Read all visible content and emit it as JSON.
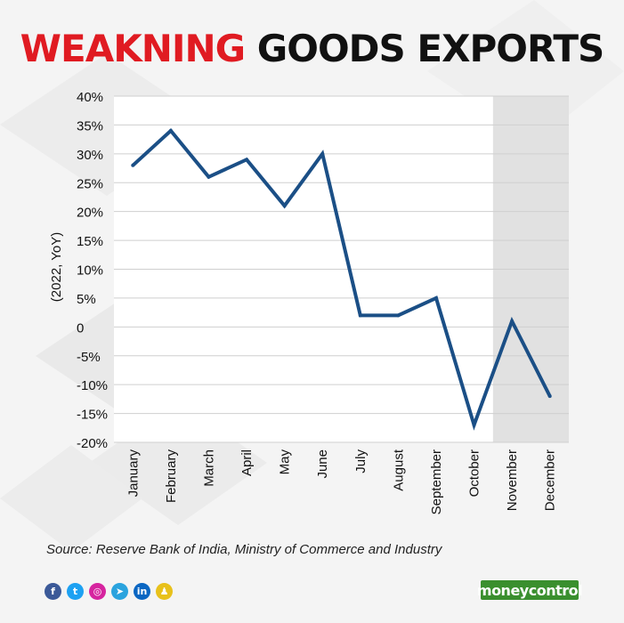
{
  "title": {
    "highlight": "WEAKNING",
    "rest": "GOODS EXPORTS"
  },
  "chart_data": {
    "type": "line",
    "categories": [
      "January",
      "February",
      "March",
      "April",
      "May",
      "June",
      "July",
      "August",
      "September",
      "October",
      "November",
      "December"
    ],
    "series": [
      {
        "values": [
          28,
          34,
          26,
          29,
          21,
          30,
          2,
          2,
          5,
          -17,
          1,
          -12
        ]
      }
    ],
    "ylabel": "(2022, YoY)",
    "xlabel": "",
    "ylim": [
      -20,
      40
    ],
    "yticks": [
      40,
      35,
      30,
      25,
      20,
      15,
      10,
      5,
      0,
      -5,
      -10,
      -15,
      -20
    ],
    "ytick_labels": [
      "40%",
      "35%",
      "30%",
      "25%",
      "20%",
      "15%",
      "10%",
      "5%",
      "0",
      "-5%",
      "-10%",
      "-15%",
      "-20%"
    ],
    "shaded_categories": [
      "November",
      "December"
    ],
    "grid": true,
    "line_color": "#1b4f86",
    "shade_color": "#e1e1e1"
  },
  "source": "Source: Reserve Bank of India, Ministry of Commerce and Industry",
  "brand": "moneycontrol",
  "social_icons": [
    {
      "icon": "facebook-icon",
      "glyph": "f",
      "color": "#3b5998"
    },
    {
      "icon": "twitter-icon",
      "glyph": "t",
      "color": "#1da1f2"
    },
    {
      "icon": "instagram-icon",
      "glyph": "◎",
      "color": "#d6249f"
    },
    {
      "icon": "telegram-icon",
      "glyph": "➤",
      "color": "#2aa3de"
    },
    {
      "icon": "linkedin-icon",
      "glyph": "in",
      "color": "#0a66c2"
    },
    {
      "icon": "snapchat-icon",
      "glyph": "♟",
      "color": "#e8c11b"
    }
  ]
}
